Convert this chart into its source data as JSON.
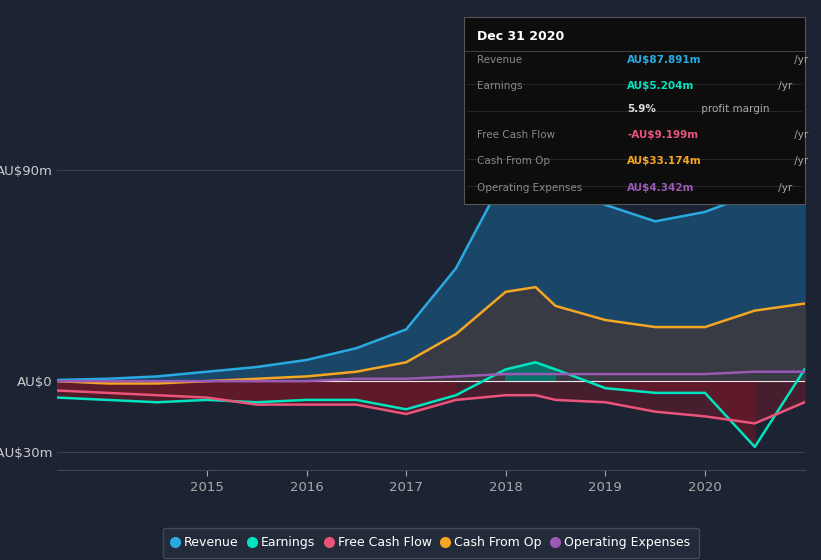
{
  "background_color": "#1c2333",
  "plot_bg_color": "#1c2333",
  "x_years": [
    2013.5,
    2014.0,
    2014.5,
    2015.0,
    2015.5,
    2016.0,
    2016.5,
    2017.0,
    2017.5,
    2018.0,
    2018.3,
    2018.5,
    2019.0,
    2019.5,
    2020.0,
    2020.5,
    2021.0
  ],
  "revenue": [
    0.5,
    1.0,
    2.0,
    4.0,
    6.0,
    9.0,
    14.0,
    22.0,
    48.0,
    88.0,
    91.0,
    84.0,
    75.0,
    68.0,
    72.0,
    80.0,
    88.0
  ],
  "earnings": [
    -7,
    -8,
    -9,
    -8,
    -9,
    -8,
    -8,
    -12,
    -6,
    5,
    8,
    5,
    -3,
    -5,
    -5,
    -28,
    5
  ],
  "free_cash_flow": [
    -4,
    -5,
    -6,
    -7,
    -10,
    -10,
    -10,
    -14,
    -8,
    -6,
    -6,
    -8,
    -9,
    -13,
    -15,
    -18,
    -9
  ],
  "cash_from_op": [
    0,
    -1,
    -1,
    0,
    1,
    2,
    4,
    8,
    20,
    38,
    40,
    32,
    26,
    23,
    23,
    30,
    33
  ],
  "op_expenses": [
    0,
    0,
    0,
    0,
    0,
    0,
    1,
    1,
    2,
    3,
    3,
    3,
    3,
    3,
    3,
    4,
    4
  ],
  "revenue_color": "#29abe2",
  "earnings_color": "#00e5c0",
  "fcf_color": "#e8547a",
  "cashop_color": "#f5a623",
  "opex_color": "#9b59b6",
  "revenue_fill": "#1a4a6e",
  "cashop_fill_color": "#3a3a42",
  "earnings_fill_pos_color": "#007a6e",
  "earnings_fill_neg_color": "#5a1a28",
  "fcf_fill_neg_color": "#6b1a2a",
  "ylim_min": -38,
  "ylim_max": 105,
  "y_ticks": [
    -30,
    0,
    90
  ],
  "y_labels": [
    "-AU$30m",
    "AU$0",
    "AU$90m"
  ],
  "x_ticks": [
    2015,
    2016,
    2017,
    2018,
    2019,
    2020
  ],
  "info_box": {
    "title": "Dec 31 2020",
    "rows": [
      {
        "label": "Revenue",
        "value": "AU$87.891m",
        "suffix": " /yr",
        "vcolor": "#29abe2"
      },
      {
        "label": "Earnings",
        "value": "AU$5.204m",
        "suffix": " /yr",
        "vcolor": "#00e5c0"
      },
      {
        "label": "",
        "value": "5.9%",
        "suffix": " profit margin",
        "vcolor": "#dddddd",
        "bold_value": true
      },
      {
        "label": "Free Cash Flow",
        "value": "-AU$9.199m",
        "suffix": " /yr",
        "vcolor": "#e8547a"
      },
      {
        "label": "Cash From Op",
        "value": "AU$33.174m",
        "suffix": " /yr",
        "vcolor": "#f5a623"
      },
      {
        "label": "Operating Expenses",
        "value": "AU$4.342m",
        "suffix": " /yr",
        "vcolor": "#9b59b6"
      }
    ]
  },
  "legend": [
    {
      "label": "Revenue",
      "color": "#29abe2"
    },
    {
      "label": "Earnings",
      "color": "#00e5c0"
    },
    {
      "label": "Free Cash Flow",
      "color": "#e8547a"
    },
    {
      "label": "Cash From Op",
      "color": "#f5a623"
    },
    {
      "label": "Operating Expenses",
      "color": "#9b59b6"
    }
  ]
}
